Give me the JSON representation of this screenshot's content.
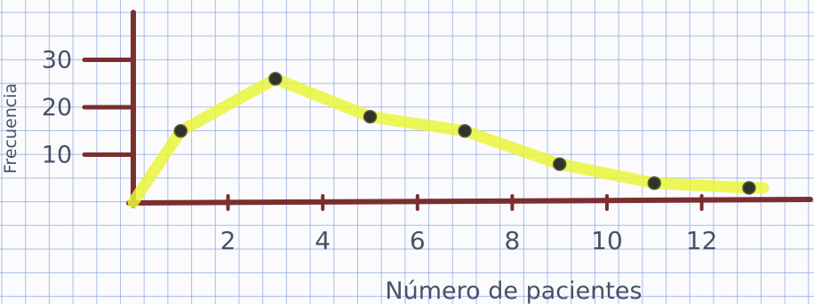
{
  "chart_data": {
    "type": "line",
    "title": "",
    "xlabel": "Número de pacientes",
    "ylabel": "Frecuencia",
    "x_ticks": [
      2,
      4,
      6,
      8,
      10,
      12
    ],
    "y_ticks": [
      10,
      20,
      30
    ],
    "xlim": [
      0,
      14.2
    ],
    "ylim": [
      0,
      35
    ],
    "grid": true,
    "series": [
      {
        "name": "",
        "x": [
          0,
          1,
          3,
          5,
          7,
          9,
          11,
          13
        ],
        "y": [
          0,
          15,
          26,
          18,
          15,
          8,
          4,
          3
        ]
      }
    ],
    "colors": {
      "axis": "#7a2f2f",
      "line": "#e9f53a",
      "point": "#2f3328",
      "grid": "#8fa8e0"
    }
  }
}
